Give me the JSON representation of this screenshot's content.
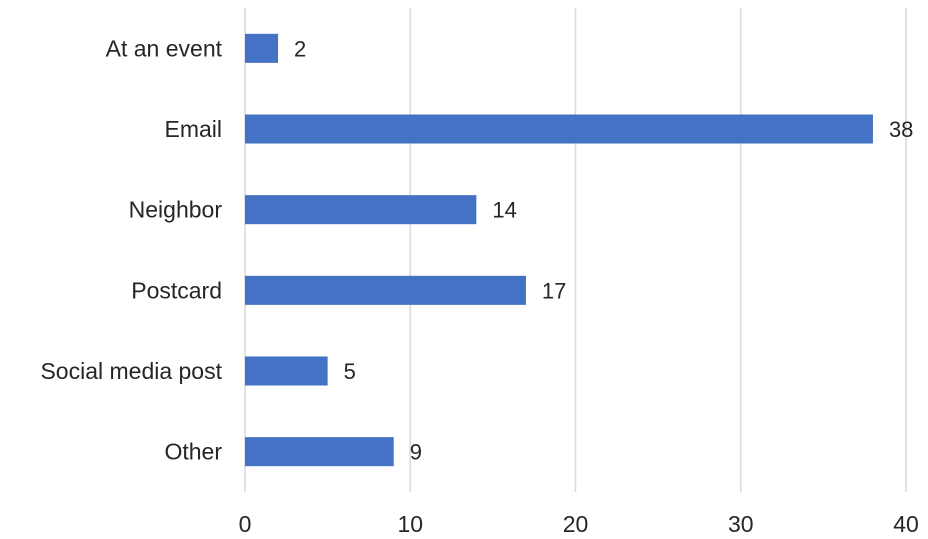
{
  "chart_data": {
    "type": "bar",
    "orientation": "horizontal",
    "categories": [
      "At an event",
      "Email",
      "Neighbor",
      "Postcard",
      "Social media post",
      "Other"
    ],
    "values": [
      2,
      38,
      14,
      17,
      5,
      9
    ],
    "data_labels": [
      "2",
      "38",
      "14",
      "17",
      "5",
      "9"
    ],
    "xlim": [
      0,
      40
    ],
    "x_ticks": [
      0,
      10,
      20,
      30,
      40
    ],
    "x_tick_labels": [
      "0",
      "10",
      "20",
      "30",
      "40"
    ],
    "grid": "vertical",
    "legend": "none",
    "bar_color": "#4472c4",
    "title": "",
    "xlabel": "",
    "ylabel": ""
  }
}
